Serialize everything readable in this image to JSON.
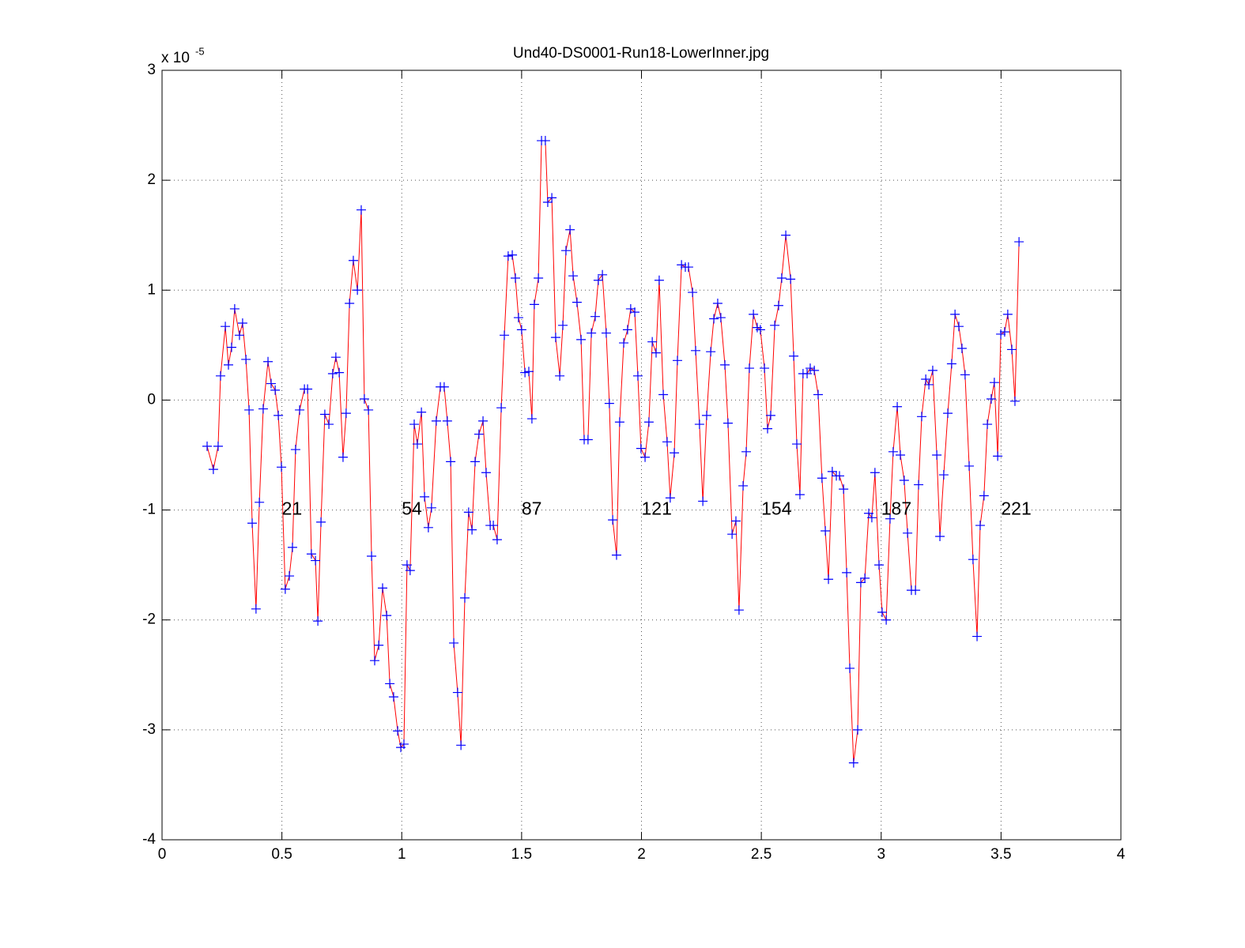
{
  "chart_data": {
    "type": "line",
    "title": "Und40-DS0001-Run18-LowerInner.jpg",
    "y_scale_label": {
      "base": "x 10",
      "exponent": "-5"
    },
    "x": [
      0.188,
      0.214,
      0.234,
      0.244,
      0.264,
      0.277,
      0.29,
      0.303,
      0.323,
      0.336,
      0.35,
      0.363,
      0.376,
      0.392,
      0.406,
      0.422,
      0.442,
      0.455,
      0.472,
      0.485,
      0.498,
      0.514,
      0.531,
      0.544,
      0.557,
      0.574,
      0.594,
      0.607,
      0.623,
      0.64,
      0.65,
      0.663,
      0.679,
      0.696,
      0.712,
      0.725,
      0.739,
      0.755,
      0.768,
      0.782,
      0.798,
      0.815,
      0.831,
      0.844,
      0.861,
      0.874,
      0.887,
      0.904,
      0.92,
      0.937,
      0.95,
      0.966,
      0.983,
      0.996,
      1.009,
      1.022,
      1.035,
      1.052,
      1.065,
      1.082,
      1.095,
      1.111,
      1.124,
      1.144,
      1.161,
      1.177,
      1.19,
      1.204,
      1.217,
      1.233,
      1.247,
      1.263,
      1.279,
      1.293,
      1.306,
      1.322,
      1.339,
      1.352,
      1.369,
      1.382,
      1.398,
      1.415,
      1.428,
      1.444,
      1.461,
      1.474,
      1.487,
      1.5,
      1.514,
      1.53,
      1.543,
      1.553,
      1.57,
      1.583,
      1.599,
      1.609,
      1.626,
      1.642,
      1.659,
      1.672,
      1.685,
      1.702,
      1.715,
      1.731,
      1.748,
      1.761,
      1.777,
      1.791,
      1.807,
      1.82,
      1.837,
      1.853,
      1.866,
      1.88,
      1.896,
      1.909,
      1.926,
      1.942,
      1.955,
      1.972,
      1.985,
      1.998,
      2.015,
      2.031,
      2.045,
      2.061,
      2.074,
      2.091,
      2.107,
      2.12,
      2.137,
      2.15,
      2.167,
      2.183,
      2.196,
      2.213,
      2.226,
      2.242,
      2.256,
      2.272,
      2.289,
      2.302,
      2.318,
      2.331,
      2.348,
      2.361,
      2.378,
      2.394,
      2.407,
      2.424,
      2.437,
      2.45,
      2.467,
      2.483,
      2.496,
      2.513,
      2.526,
      2.539,
      2.556,
      2.572,
      2.585,
      2.602,
      2.622,
      2.635,
      2.648,
      2.661,
      2.674,
      2.691,
      2.704,
      2.721,
      2.737,
      2.753,
      2.767,
      2.78,
      2.796,
      2.813,
      2.826,
      2.843,
      2.856,
      2.869,
      2.885,
      2.902,
      2.915,
      2.932,
      2.948,
      2.961,
      2.974,
      2.991,
      3.004,
      3.021,
      3.037,
      3.05,
      3.067,
      3.08,
      3.096,
      3.11,
      3.126,
      3.143,
      3.156,
      3.169,
      3.186,
      3.199,
      3.215,
      3.232,
      3.245,
      3.261,
      3.278,
      3.294,
      3.308,
      3.324,
      3.337,
      3.35,
      3.367,
      3.383,
      3.4,
      3.413,
      3.429,
      3.443,
      3.459,
      3.472,
      3.486,
      3.499,
      3.515,
      3.528,
      3.545,
      3.558,
      3.575
    ],
    "values": [
      -0.42,
      -0.63,
      -0.42,
      0.22,
      0.67,
      0.32,
      0.48,
      0.83,
      0.59,
      0.7,
      0.37,
      -0.09,
      -1.12,
      -1.9,
      -0.93,
      -0.08,
      0.35,
      0.15,
      0.09,
      -0.14,
      -0.61,
      -1.72,
      -1.6,
      -1.34,
      -0.45,
      -0.09,
      0.1,
      0.1,
      -1.4,
      -1.46,
      -2.01,
      -1.11,
      -0.13,
      -0.22,
      0.24,
      0.39,
      0.25,
      -0.52,
      -0.12,
      0.88,
      1.27,
      1.0,
      1.73,
      0.01,
      -0.09,
      -1.42,
      -2.37,
      -2.23,
      -1.71,
      -1.96,
      -2.58,
      -2.7,
      -3.01,
      -3.16,
      -3.13,
      -1.5,
      -1.55,
      -0.22,
      -0.4,
      -0.11,
      -0.88,
      -1.16,
      -0.98,
      -0.19,
      0.12,
      0.12,
      -0.19,
      -0.56,
      -2.21,
      -2.66,
      -3.14,
      -1.8,
      -1.02,
      -1.18,
      -0.56,
      -0.31,
      -0.19,
      -0.66,
      -1.14,
      -1.14,
      -1.27,
      -0.07,
      0.59,
      1.31,
      1.32,
      1.11,
      0.75,
      0.64,
      0.25,
      0.26,
      -0.17,
      0.87,
      1.11,
      2.36,
      2.36,
      1.8,
      1.84,
      0.57,
      0.22,
      0.68,
      1.36,
      1.55,
      1.13,
      0.89,
      0.55,
      -0.36,
      -0.36,
      0.61,
      0.76,
      1.09,
      1.14,
      0.61,
      -0.03,
      -1.09,
      -1.41,
      -0.2,
      0.52,
      0.64,
      0.83,
      0.8,
      0.22,
      -0.44,
      -0.52,
      -0.2,
      0.53,
      0.43,
      1.09,
      0.05,
      -0.38,
      -0.89,
      -0.48,
      0.36,
      1.23,
      1.21,
      1.21,
      0.98,
      0.45,
      -0.22,
      -0.92,
      -0.14,
      0.44,
      0.74,
      0.88,
      0.75,
      0.32,
      -0.21,
      -1.22,
      -1.1,
      -1.91,
      -0.78,
      -0.47,
      0.29,
      0.78,
      0.66,
      0.64,
      0.29,
      -0.26,
      -0.14,
      0.68,
      0.86,
      1.11,
      1.5,
      1.1,
      0.4,
      -0.4,
      -0.86,
      0.24,
      0.24,
      0.29,
      0.27,
      0.05,
      -0.71,
      -1.19,
      -1.63,
      -0.65,
      -0.69,
      -0.69,
      -0.81,
      -1.57,
      -2.44,
      -3.3,
      -3.0,
      -1.66,
      -1.62,
      -1.03,
      -1.07,
      -0.66,
      -1.5,
      -1.93,
      -2.0,
      -1.08,
      -0.47,
      -0.06,
      -0.5,
      -0.73,
      -1.21,
      -1.73,
      -1.73,
      -0.77,
      -0.15,
      0.19,
      0.14,
      0.27,
      -0.5,
      -1.24,
      -0.68,
      -0.12,
      0.33,
      0.78,
      0.67,
      0.47,
      0.23,
      -0.6,
      -1.45,
      -2.15,
      -1.14,
      -0.87,
      -0.22,
      0.01,
      0.16,
      -0.51,
      0.6,
      0.62,
      0.78,
      0.46,
      -0.01,
      1.44
    ],
    "color": "#ff0000",
    "marker_color": "#0000ff",
    "annotations": [
      {
        "text": "21",
        "x": 0.5,
        "y": -1
      },
      {
        "text": "54",
        "x": 1,
        "y": -1
      },
      {
        "text": "87",
        "x": 1.5,
        "y": -1
      },
      {
        "text": "121",
        "x": 2,
        "y": -1
      },
      {
        "text": "154",
        "x": 2.5,
        "y": -1
      },
      {
        "text": "187",
        "x": 3,
        "y": -1
      },
      {
        "text": "221",
        "x": 3.5,
        "y": -1
      }
    ],
    "xlim": [
      0,
      4
    ],
    "ylim": [
      -4,
      3
    ],
    "xticks": [
      0,
      0.5,
      1,
      1.5,
      2,
      2.5,
      3,
      3.5,
      4
    ],
    "yticks": [
      -4,
      -3,
      -2,
      -1,
      0,
      1,
      2,
      3
    ],
    "grid": true
  }
}
